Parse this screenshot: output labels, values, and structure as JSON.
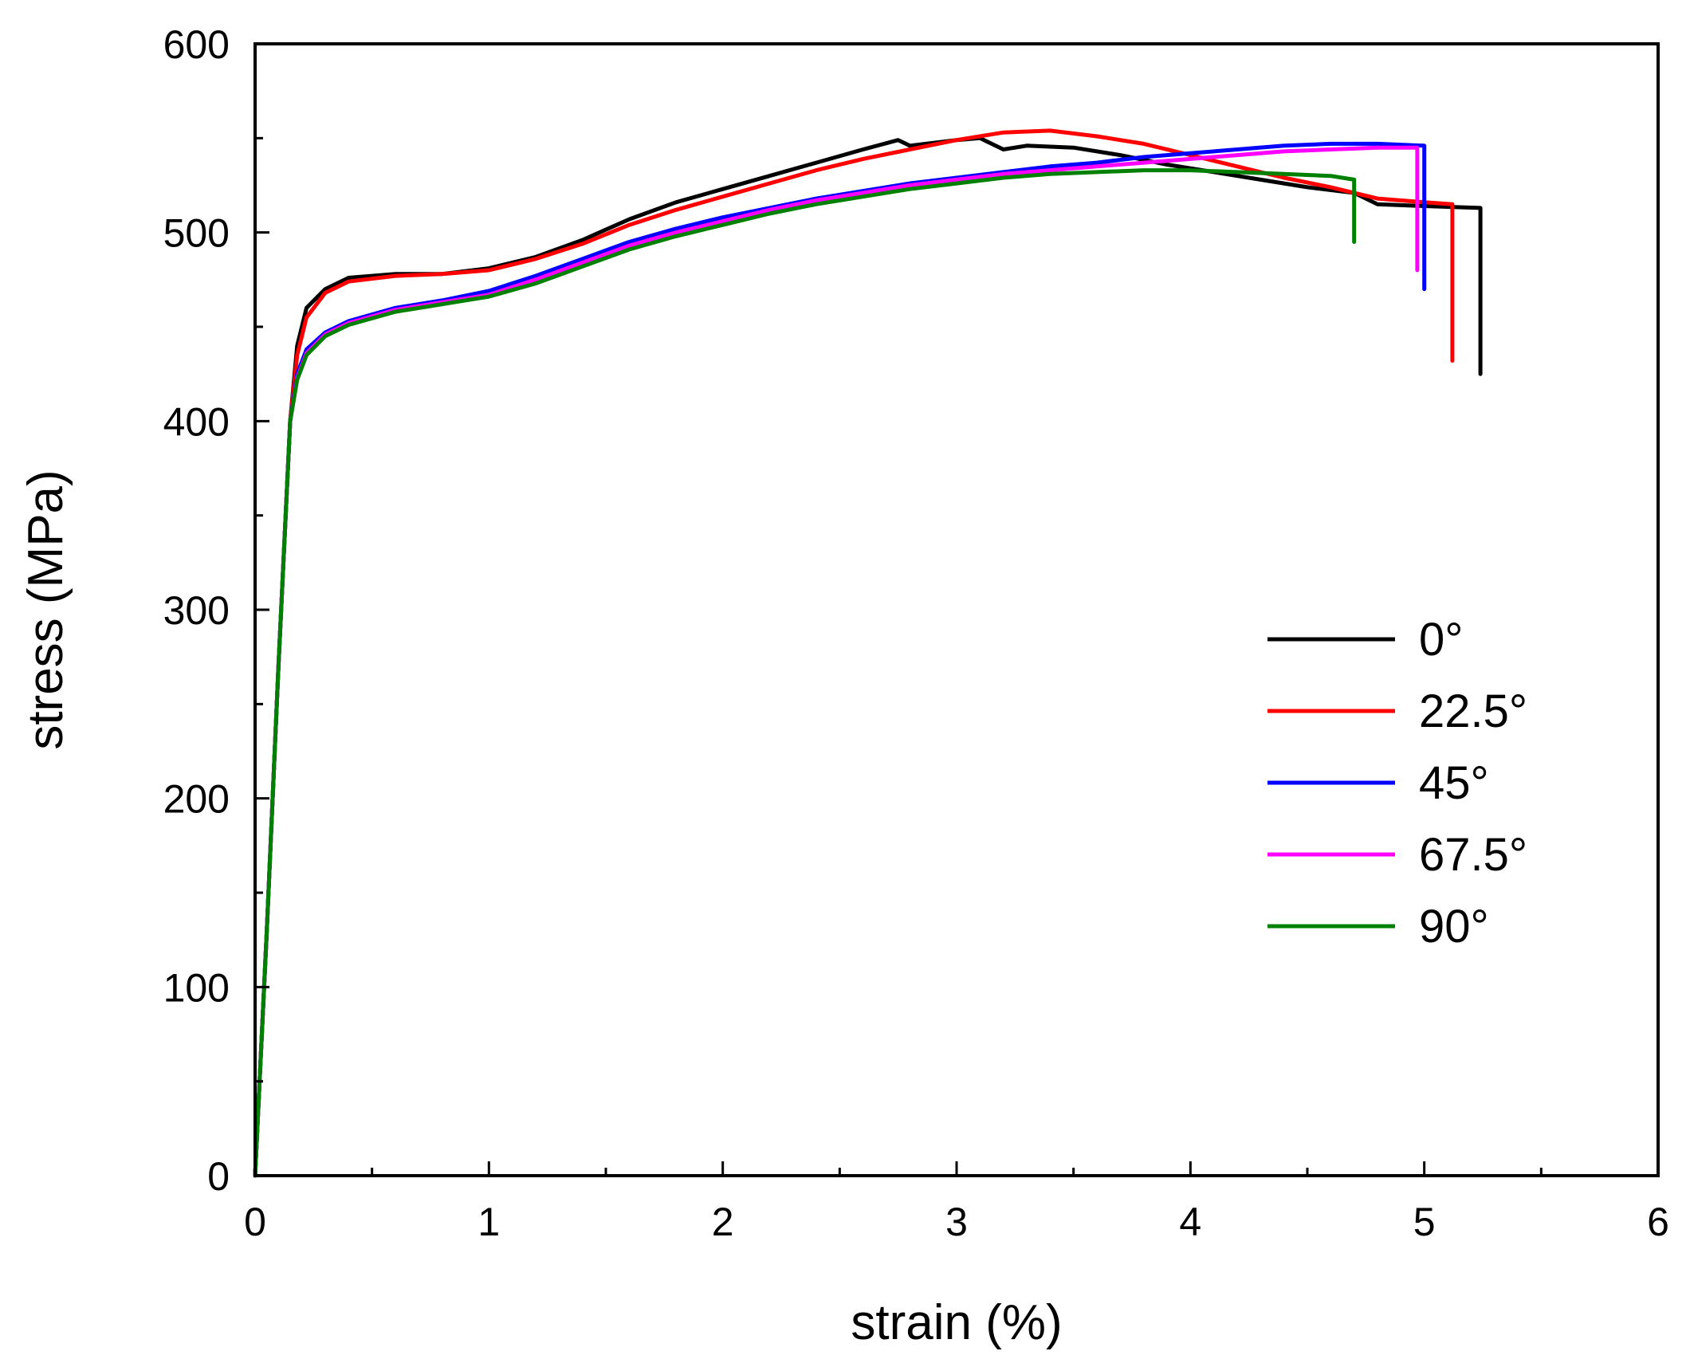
{
  "chart_data": {
    "type": "line",
    "title": "",
    "xlabel": "strain (%)",
    "ylabel": "stress (MPa)",
    "xlim": [
      0,
      6
    ],
    "ylim": [
      0,
      600
    ],
    "xticks": [
      "0",
      "1",
      "2",
      "3",
      "4",
      "5",
      "6"
    ],
    "yticks": [
      "0",
      "100",
      "200",
      "300",
      "400",
      "500",
      "600"
    ],
    "grid": false,
    "legend_position": "center-right",
    "series": [
      {
        "name": "0°",
        "color": "#000000",
        "points": [
          [
            0,
            0
          ],
          [
            0.05,
            130
          ],
          [
            0.1,
            270
          ],
          [
            0.15,
            400
          ],
          [
            0.18,
            440
          ],
          [
            0.22,
            460
          ],
          [
            0.3,
            470
          ],
          [
            0.4,
            476
          ],
          [
            0.6,
            478
          ],
          [
            0.8,
            478
          ],
          [
            1.0,
            481
          ],
          [
            1.2,
            487
          ],
          [
            1.4,
            496
          ],
          [
            1.6,
            507
          ],
          [
            1.8,
            516
          ],
          [
            2.0,
            523
          ],
          [
            2.2,
            530
          ],
          [
            2.4,
            537
          ],
          [
            2.6,
            544
          ],
          [
            2.75,
            549
          ],
          [
            2.8,
            546
          ],
          [
            3.0,
            549
          ],
          [
            3.1,
            550
          ],
          [
            3.2,
            544
          ],
          [
            3.3,
            546
          ],
          [
            3.5,
            545
          ],
          [
            3.7,
            541
          ],
          [
            3.9,
            536
          ],
          [
            4.1,
            532
          ],
          [
            4.3,
            528
          ],
          [
            4.5,
            524
          ],
          [
            4.7,
            521
          ],
          [
            4.8,
            515
          ],
          [
            5.0,
            514
          ],
          [
            5.24,
            513
          ],
          [
            5.24,
            425
          ]
        ]
      },
      {
        "name": "22.5°",
        "color": "#ff0000",
        "points": [
          [
            0,
            0
          ],
          [
            0.05,
            130
          ],
          [
            0.1,
            270
          ],
          [
            0.15,
            400
          ],
          [
            0.18,
            435
          ],
          [
            0.22,
            455
          ],
          [
            0.3,
            468
          ],
          [
            0.4,
            474
          ],
          [
            0.6,
            477
          ],
          [
            0.8,
            478
          ],
          [
            1.0,
            480
          ],
          [
            1.2,
            486
          ],
          [
            1.4,
            494
          ],
          [
            1.6,
            504
          ],
          [
            1.8,
            512
          ],
          [
            2.0,
            519
          ],
          [
            2.2,
            526
          ],
          [
            2.4,
            533
          ],
          [
            2.6,
            539
          ],
          [
            2.8,
            544
          ],
          [
            3.0,
            549
          ],
          [
            3.2,
            553
          ],
          [
            3.4,
            554
          ],
          [
            3.6,
            551
          ],
          [
            3.8,
            547
          ],
          [
            4.0,
            541
          ],
          [
            4.2,
            535
          ],
          [
            4.4,
            529
          ],
          [
            4.6,
            524
          ],
          [
            4.8,
            518
          ],
          [
            5.0,
            516
          ],
          [
            5.12,
            515
          ],
          [
            5.12,
            432
          ]
        ]
      },
      {
        "name": "45°",
        "color": "#0000ff",
        "points": [
          [
            0,
            0
          ],
          [
            0.05,
            130
          ],
          [
            0.1,
            270
          ],
          [
            0.15,
            400
          ],
          [
            0.18,
            425
          ],
          [
            0.22,
            438
          ],
          [
            0.3,
            447
          ],
          [
            0.4,
            453
          ],
          [
            0.6,
            460
          ],
          [
            0.8,
            464
          ],
          [
            1.0,
            469
          ],
          [
            1.2,
            477
          ],
          [
            1.4,
            486
          ],
          [
            1.6,
            495
          ],
          [
            1.8,
            502
          ],
          [
            2.0,
            508
          ],
          [
            2.2,
            513
          ],
          [
            2.4,
            518
          ],
          [
            2.6,
            522
          ],
          [
            2.8,
            526
          ],
          [
            3.0,
            529
          ],
          [
            3.2,
            532
          ],
          [
            3.4,
            535
          ],
          [
            3.6,
            537
          ],
          [
            3.8,
            540
          ],
          [
            4.0,
            542
          ],
          [
            4.2,
            544
          ],
          [
            4.4,
            546
          ],
          [
            4.6,
            547
          ],
          [
            4.8,
            547
          ],
          [
            5.0,
            546
          ],
          [
            5.0,
            470
          ]
        ]
      },
      {
        "name": "67.5°",
        "color": "#ff00ff",
        "points": [
          [
            0,
            0
          ],
          [
            0.05,
            130
          ],
          [
            0.1,
            270
          ],
          [
            0.15,
            400
          ],
          [
            0.18,
            423
          ],
          [
            0.22,
            436
          ],
          [
            0.3,
            446
          ],
          [
            0.4,
            452
          ],
          [
            0.6,
            459
          ],
          [
            0.8,
            463
          ],
          [
            1.0,
            467
          ],
          [
            1.2,
            475
          ],
          [
            1.4,
            484
          ],
          [
            1.6,
            493
          ],
          [
            1.8,
            500
          ],
          [
            2.0,
            506
          ],
          [
            2.2,
            512
          ],
          [
            2.4,
            517
          ],
          [
            2.6,
            521
          ],
          [
            2.8,
            525
          ],
          [
            3.0,
            528
          ],
          [
            3.2,
            531
          ],
          [
            3.4,
            533
          ],
          [
            3.6,
            535
          ],
          [
            3.8,
            537
          ],
          [
            4.0,
            539
          ],
          [
            4.2,
            541
          ],
          [
            4.4,
            543
          ],
          [
            4.6,
            544
          ],
          [
            4.8,
            545
          ],
          [
            4.97,
            545
          ],
          [
            4.97,
            480
          ]
        ]
      },
      {
        "name": "90°",
        "color": "#008000",
        "points": [
          [
            0,
            0
          ],
          [
            0.05,
            130
          ],
          [
            0.1,
            270
          ],
          [
            0.15,
            400
          ],
          [
            0.18,
            422
          ],
          [
            0.22,
            435
          ],
          [
            0.3,
            445
          ],
          [
            0.4,
            451
          ],
          [
            0.6,
            458
          ],
          [
            0.8,
            462
          ],
          [
            1.0,
            466
          ],
          [
            1.2,
            473
          ],
          [
            1.4,
            482
          ],
          [
            1.6,
            491
          ],
          [
            1.8,
            498
          ],
          [
            2.0,
            504
          ],
          [
            2.2,
            510
          ],
          [
            2.4,
            515
          ],
          [
            2.6,
            519
          ],
          [
            2.8,
            523
          ],
          [
            3.0,
            526
          ],
          [
            3.2,
            529
          ],
          [
            3.4,
            531
          ],
          [
            3.6,
            532
          ],
          [
            3.8,
            533
          ],
          [
            4.0,
            533
          ],
          [
            4.2,
            532
          ],
          [
            4.4,
            531
          ],
          [
            4.6,
            530
          ],
          [
            4.7,
            528
          ],
          [
            4.7,
            495
          ]
        ]
      }
    ]
  }
}
